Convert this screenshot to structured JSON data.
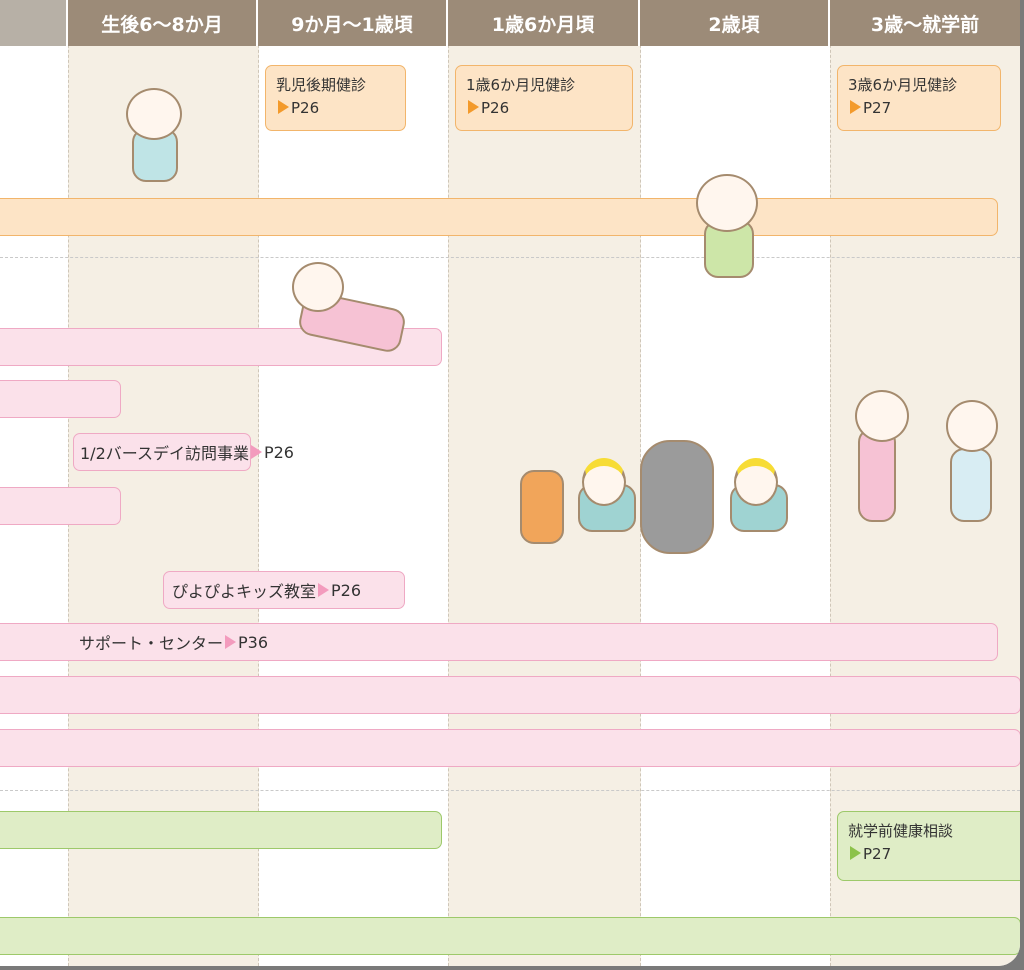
{
  "header": {
    "columns": [
      "生後6～8か月",
      "9か月～1歳頃",
      "1歳6か月頃",
      "2歳頃",
      "3歳～就学前"
    ]
  },
  "checkups": [
    {
      "label": "乳児後期健診",
      "page": "P26"
    },
    {
      "label": "1歳6か月児健診",
      "page": "P26"
    },
    {
      "label": "3歳6か月児健診",
      "page": "P27"
    },
    {
      "label": "就学前健康相談",
      "page": "P27"
    }
  ],
  "programs": [
    {
      "label": "1/2バースデイ訪問事業",
      "page": "P26"
    },
    {
      "label": "ぴよぴよキッズ教室",
      "page": "P26"
    },
    {
      "label": "サポート・センター",
      "page": "P36"
    }
  ]
}
